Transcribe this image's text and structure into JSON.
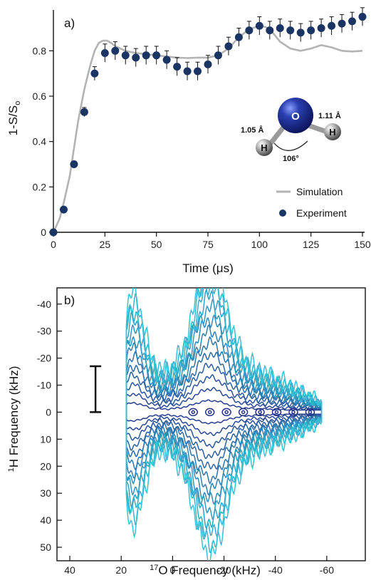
{
  "chart_data": [
    {
      "type": "scatter",
      "panel_label": "a)",
      "xlabel": "Time (μs)",
      "ylabel": "1-S/S",
      "ylabel_sub": "o",
      "xlim": [
        0,
        150
      ],
      "ylim": [
        0,
        0.98
      ],
      "xticks": [
        0,
        25,
        50,
        75,
        100,
        125,
        150
      ],
      "yticks": [
        0,
        0.2,
        0.4,
        0.6,
        0.8
      ],
      "ytick_labels": [
        "0",
        "0.2",
        "0.4",
        "0.6",
        "0.8"
      ],
      "legend_position": "bottom-right",
      "series": [
        {
          "name": "Simulation",
          "kind": "line",
          "color": "#b3b3b3",
          "x": [
            0,
            3,
            5,
            8,
            10,
            12,
            15,
            18,
            20,
            22,
            24,
            26,
            28,
            30,
            35,
            40,
            45,
            50,
            55,
            60,
            65,
            70,
            75,
            80,
            85,
            90,
            95,
            100,
            103,
            106,
            110,
            115,
            120,
            125,
            130,
            135,
            140,
            145,
            150
          ],
          "y": [
            0,
            0.06,
            0.13,
            0.25,
            0.37,
            0.49,
            0.63,
            0.74,
            0.8,
            0.835,
            0.845,
            0.845,
            0.835,
            0.82,
            0.8,
            0.79,
            0.785,
            0.78,
            0.775,
            0.77,
            0.768,
            0.77,
            0.77,
            0.78,
            0.81,
            0.86,
            0.895,
            0.91,
            0.905,
            0.885,
            0.84,
            0.81,
            0.8,
            0.81,
            0.825,
            0.815,
            0.8,
            0.797,
            0.8
          ]
        },
        {
          "name": "Experiment",
          "kind": "scatter",
          "color": "#1a3563",
          "x": [
            0,
            5,
            10,
            15,
            20,
            25,
            30,
            35,
            40,
            45,
            50,
            55,
            60,
            65,
            70,
            75,
            80,
            85,
            90,
            95,
            100,
            105,
            110,
            115,
            120,
            125,
            130,
            135,
            140,
            145,
            150
          ],
          "y": [
            0.0,
            0.1,
            0.3,
            0.53,
            0.7,
            0.79,
            0.8,
            0.78,
            0.77,
            0.78,
            0.78,
            0.76,
            0.73,
            0.71,
            0.71,
            0.74,
            0.78,
            0.82,
            0.86,
            0.89,
            0.91,
            0.89,
            0.9,
            0.89,
            0.88,
            0.89,
            0.9,
            0.91,
            0.92,
            0.93,
            0.95
          ],
          "err": [
            0,
            0.01,
            0.01,
            0.02,
            0.03,
            0.04,
            0.04,
            0.04,
            0.04,
            0.04,
            0.04,
            0.04,
            0.04,
            0.04,
            0.04,
            0.04,
            0.04,
            0.04,
            0.04,
            0.04,
            0.04,
            0.04,
            0.04,
            0.04,
            0.04,
            0.04,
            0.04,
            0.04,
            0.04,
            0.04,
            0.04
          ]
        }
      ],
      "molecule": {
        "atoms": [
          {
            "symbol": "O",
            "color": "#1e2f8f"
          },
          {
            "symbol": "H",
            "color": "#9a9a9a"
          },
          {
            "symbol": "H",
            "color": "#9a9a9a"
          }
        ],
        "bond_left": "1.05 Å",
        "bond_right": "1.11 Å",
        "angle": "106°"
      }
    },
    {
      "type": "contour",
      "panel_label": "b)",
      "xlabel": "O Frequency (kHz)",
      "xlabel_sup": "17",
      "ylabel": "H Frequency (kHz)",
      "ylabel_sup": "1",
      "xlim": [
        45,
        -75
      ],
      "ylim": [
        -46,
        55
      ],
      "xticks": [
        40,
        20,
        0,
        -20,
        -40,
        -60
      ],
      "xtick_labels": [
        "40",
        "20",
        "0",
        "-20",
        "-40",
        "-60"
      ],
      "yticks": [
        -40,
        -30,
        -20,
        -10,
        0,
        10,
        20,
        30,
        40,
        50
      ],
      "ytick_labels": [
        "-40",
        "-30",
        "-20",
        "-10",
        "0",
        "10",
        "20",
        "30",
        "40",
        "50"
      ],
      "scale_bar": {
        "x": 30,
        "y_from": -17,
        "y_to": 0
      },
      "colors": {
        "inner": "#27338a",
        "outer": "#33c3d6"
      }
    }
  ]
}
